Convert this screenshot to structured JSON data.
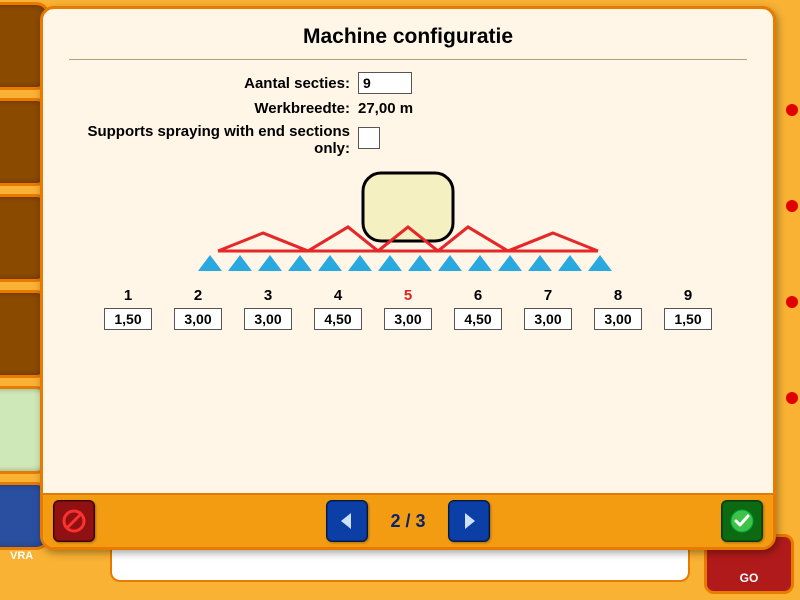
{
  "modal": {
    "title": "Machine configuratie",
    "fields": {
      "sections_label": "Aantal secties:",
      "sections_value": "9",
      "width_label": "Werkbreedte:",
      "width_value": "27,00 m",
      "end_spray_label": "Supports spraying with end sections only:"
    },
    "boom": {
      "nozzle_color": "#2aa8e0",
      "truss_color": "#e62828",
      "tank_fill": "#f4f0c2",
      "tank_stroke": "#000000"
    },
    "sections": [
      {
        "n": "1",
        "w": "1,50",
        "center": false
      },
      {
        "n": "2",
        "w": "3,00",
        "center": false
      },
      {
        "n": "3",
        "w": "3,00",
        "center": false
      },
      {
        "n": "4",
        "w": "4,50",
        "center": false
      },
      {
        "n": "5",
        "w": "3,00",
        "center": true
      },
      {
        "n": "6",
        "w": "4,50",
        "center": false
      },
      {
        "n": "7",
        "w": "3,00",
        "center": false
      },
      {
        "n": "8",
        "w": "3,00",
        "center": false
      },
      {
        "n": "9",
        "w": "1,50",
        "center": false
      }
    ],
    "pager": {
      "current": "2",
      "total": "3",
      "text": "2 / 3"
    }
  },
  "background": {
    "go_label": "GO",
    "vra_label": "VRA"
  },
  "colors": {
    "dialog_bg": "#fff6e8",
    "accent_orange": "#e87a00",
    "footer_bg": "#f39c12"
  }
}
